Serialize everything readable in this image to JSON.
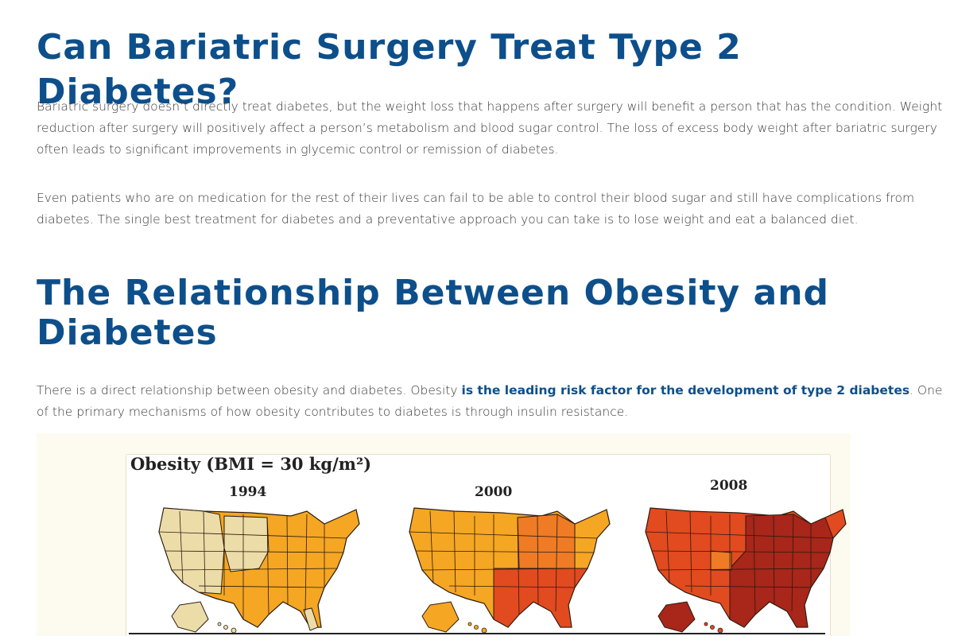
{
  "article": {
    "heading1": "Can Bariatric Surgery Treat Type 2 Diabetes?",
    "paragraph1": "Bariatric surgery doesn’t directly treat diabetes, but the weight loss that happens after surgery will benefit a person that has the condition. Weight reduction after surgery will positively affect a person’s metabolism and blood sugar control. The loss of excess body weight after bariatric surgery often leads to significant improvements in glycemic control or remission of diabetes.",
    "paragraph2": "Even patients who are on medication for the rest of their lives can fail to be able to control their blood sugar and still have complications from diabetes. The single best treatment for diabetes and a preventative approach you can take is to lose weight and eat a balanced diet.",
    "heading2": "The Relationship Between Obesity and Diabetes",
    "paragraph3_before": "There is a direct relationship between obesity and diabetes. Obesity ",
    "paragraph3_link": "is the leading risk factor for the development of type 2 diabetes",
    "paragraph3_after": ". One of the primary mechanisms of how obesity contributes to diabetes is through insulin resistance."
  },
  "figure": {
    "title": "Obesity (BMI = 30 kg/m²)",
    "years": [
      "1994",
      "2000",
      "2008"
    ],
    "colors": {
      "lightest": "#ecdca8",
      "light_orange": "#f5a623",
      "orange": "#ef7b24",
      "red_orange": "#e24a1f",
      "dark_red": "#a8261a",
      "state_border": "#2b1a10"
    }
  }
}
